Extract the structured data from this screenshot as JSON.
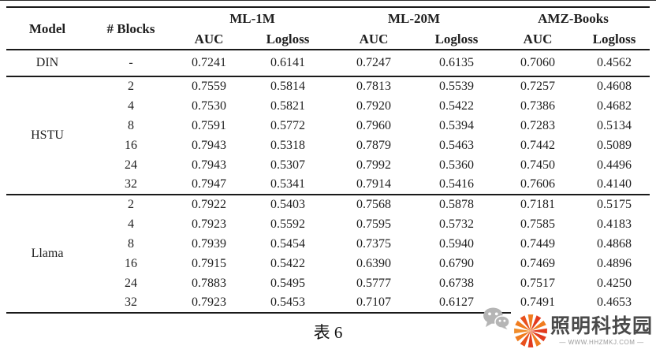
{
  "table": {
    "header": {
      "model": "Model",
      "blocks": "# Blocks",
      "groups": [
        {
          "label": "ML-1M",
          "sub": [
            "AUC",
            "Logloss"
          ]
        },
        {
          "label": "ML-20M",
          "sub": [
            "AUC",
            "Logloss"
          ]
        },
        {
          "label": "AMZ-Books",
          "sub": [
            "AUC",
            "Logloss"
          ]
        }
      ]
    },
    "sections": [
      {
        "model": "DIN",
        "rows": [
          {
            "blocks": "-",
            "values": [
              "0.7241",
              "0.6141",
              "0.7247",
              "0.6135",
              "0.7060",
              "0.4562"
            ]
          }
        ]
      },
      {
        "model": "HSTU",
        "rows": [
          {
            "blocks": "2",
            "values": [
              "0.7559",
              "0.5814",
              "0.7813",
              "0.5539",
              "0.7257",
              "0.4608"
            ]
          },
          {
            "blocks": "4",
            "values": [
              "0.7530",
              "0.5821",
              "0.7920",
              "0.5422",
              "0.7386",
              "0.4682"
            ]
          },
          {
            "blocks": "8",
            "values": [
              "0.7591",
              "0.5772",
              "0.7960",
              "0.5394",
              "0.7283",
              "0.5134"
            ]
          },
          {
            "blocks": "16",
            "values": [
              "0.7943",
              "0.5318",
              "0.7879",
              "0.5463",
              "0.7442",
              "0.5089"
            ]
          },
          {
            "blocks": "24",
            "values": [
              "0.7943",
              "0.5307",
              "0.7992",
              "0.5360",
              "0.7450",
              "0.4496"
            ]
          },
          {
            "blocks": "32",
            "values": [
              "0.7947",
              "0.5341",
              "0.7914",
              "0.5416",
              "0.7606",
              "0.4140"
            ]
          }
        ]
      },
      {
        "model": "Llama",
        "rows": [
          {
            "blocks": "2",
            "values": [
              "0.7922",
              "0.5403",
              "0.7568",
              "0.5878",
              "0.7181",
              "0.5175"
            ]
          },
          {
            "blocks": "4",
            "values": [
              "0.7923",
              "0.5592",
              "0.7595",
              "0.5732",
              "0.7585",
              "0.4183"
            ]
          },
          {
            "blocks": "8",
            "values": [
              "0.7939",
              "0.5454",
              "0.7375",
              "0.5940",
              "0.7449",
              "0.4868"
            ]
          },
          {
            "blocks": "16",
            "values": [
              "0.7915",
              "0.5422",
              "0.6390",
              "0.6790",
              "0.7469",
              "0.4896"
            ]
          },
          {
            "blocks": "24",
            "values": [
              "0.7883",
              "0.5495",
              "0.5777",
              "0.6738",
              "0.7517",
              "0.4250"
            ]
          },
          {
            "blocks": "32",
            "values": [
              "0.7923",
              "0.5453",
              "0.7107",
              "0.6127",
              "0.7491",
              "0.4653"
            ]
          }
        ]
      }
    ]
  },
  "caption": "表 6",
  "watermark": {
    "brand": "照明科技园",
    "url": "— WWW.HHZMKJ.COM —",
    "colors": {
      "brand_orange": "#f07c1f",
      "brand_red": "#e23b1e",
      "wechat_gray": "#b5b5b5",
      "brand_text": "#4a4a4a"
    }
  }
}
